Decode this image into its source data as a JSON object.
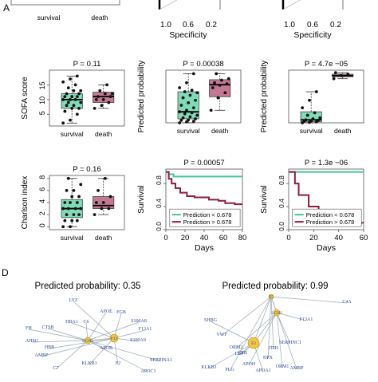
{
  "colors": {
    "survival_box": "#7fdcb8",
    "death_box": "#c47893",
    "line_low": "#3ec99a",
    "line_high": "#8b1e3f",
    "edge": "#9aa7b0",
    "node_text": "#2b4a9b",
    "hub_fill": "#f2c744"
  },
  "top_row": {
    "left_group_label": "survival",
    "right_group_label": "death",
    "clipped_axis_letter": "A",
    "roc": [
      {
        "axis_label": "Specificity",
        "tick_left": "1.0",
        "tick_mid": "0.6",
        "tick_right": "0.2"
      },
      {
        "axis_label": "Specificity",
        "tick_left": "1.0",
        "tick_mid": "0.6",
        "tick_right": "0.2"
      }
    ]
  },
  "panel_d": {
    "label": "D",
    "left_title": "Predicted probability: 0.35",
    "right_title": "Predicted probability: 0.99"
  },
  "chart_data": [
    {
      "type": "box",
      "p_label": "P = 0.11",
      "ylabel": "SOFA score",
      "categories": [
        "survival",
        "death"
      ],
      "yticks": [
        "5",
        "10",
        "15"
      ],
      "ylim": [
        1,
        20
      ],
      "boxes": [
        {
          "q1": 7,
          "median": 10,
          "q3": 12,
          "whisker_low": 2,
          "whisker_high": 18
        },
        {
          "q1": 9,
          "median": 11,
          "q3": 12.5,
          "whisker_low": 7,
          "whisker_high": 15
        }
      ],
      "points": [
        [
          2,
          3,
          5,
          6,
          7,
          7,
          8,
          8,
          9,
          9,
          10,
          10,
          10,
          11,
          11,
          11,
          12,
          12,
          13,
          13,
          14,
          15,
          16,
          17,
          18
        ],
        [
          7,
          8,
          9,
          10,
          10,
          11,
          11,
          12,
          12,
          13,
          15
        ]
      ]
    },
    {
      "type": "box",
      "p_label": "P = 0.00038",
      "ylabel": "Predicted probability",
      "categories": [
        "survival",
        "death"
      ],
      "ylim": [
        0,
        1.05
      ],
      "boxes": [
        {
          "q1": 0.08,
          "median": 0.22,
          "q3": 0.62,
          "whisker_low": 0.0,
          "whisker_high": 0.98
        },
        {
          "q1": 0.52,
          "median": 0.76,
          "q3": 0.86,
          "whisker_low": 0.25,
          "whisker_high": 0.98
        }
      ],
      "points": [
        [
          0.0,
          0.02,
          0.03,
          0.05,
          0.06,
          0.08,
          0.1,
          0.12,
          0.15,
          0.18,
          0.2,
          0.22,
          0.25,
          0.3,
          0.35,
          0.4,
          0.45,
          0.5,
          0.55,
          0.6,
          0.62,
          0.65,
          0.7,
          0.8,
          0.98
        ],
        [
          0.25,
          0.5,
          0.6,
          0.7,
          0.75,
          0.78,
          0.8,
          0.85,
          0.88,
          0.98
        ]
      ]
    },
    {
      "type": "box",
      "p_label": "P = 4.7e −05",
      "ylabel": "Predicted probability",
      "categories": [
        "survival",
        "death"
      ],
      "ylim": [
        0,
        1.05
      ],
      "boxes": [
        {
          "q1": 0.02,
          "median": 0.06,
          "q3": 0.22,
          "whisker_low": 0.0,
          "whisker_high": 0.62
        },
        {
          "q1": 0.92,
          "median": 0.94,
          "q3": 0.97,
          "whisker_low": 0.88,
          "whisker_high": 1.0
        }
      ],
      "points": [
        [
          0.0,
          0.01,
          0.02,
          0.03,
          0.04,
          0.05,
          0.06,
          0.08,
          0.1,
          0.15,
          0.2,
          0.3,
          0.45,
          0.62
        ],
        [
          0.88,
          0.94,
          0.97,
          1.0
        ]
      ]
    },
    {
      "type": "box",
      "p_label": "P = 0.16",
      "ylabel": "Charlson index",
      "categories": [
        "survival",
        "death"
      ],
      "yticks": [
        "0",
        "2",
        "4",
        "6",
        "8"
      ],
      "ylim": [
        -0.5,
        8.5
      ],
      "boxes": [
        {
          "q1": 1.5,
          "median": 3,
          "q3": 4.5,
          "whisker_low": 0,
          "whisker_high": 8
        },
        {
          "q1": 3,
          "median": 3.5,
          "q3": 5,
          "whisker_low": 2,
          "whisker_high": 8
        }
      ],
      "points": [
        [
          0,
          0,
          1,
          1,
          1,
          2,
          2,
          2,
          3,
          3,
          3,
          3,
          4,
          4,
          4,
          5,
          5,
          6,
          6,
          7,
          8
        ],
        [
          2,
          3,
          3,
          4,
          4,
          5,
          6,
          8
        ]
      ]
    },
    {
      "type": "line",
      "p_label": "P = 0.00057",
      "ylabel": "Survival",
      "xlabel": "Days",
      "xticks": [
        "0",
        "20",
        "40",
        "60",
        "80"
      ],
      "yticks": [
        "0.0",
        "0.4",
        "0.8"
      ],
      "xlim": [
        0,
        80
      ],
      "ylim": [
        0,
        1.05
      ],
      "series": [
        {
          "name": "Prediction < 0.678",
          "steps": [
            [
              0,
              1.0
            ],
            [
              3,
              0.96
            ],
            [
              8,
              0.92
            ],
            [
              80,
              0.92
            ]
          ]
        },
        {
          "name": "Prediction > 0.678",
          "steps": [
            [
              0,
              1.0
            ],
            [
              3,
              0.88
            ],
            [
              6,
              0.8
            ],
            [
              10,
              0.72
            ],
            [
              15,
              0.64
            ],
            [
              22,
              0.58
            ],
            [
              30,
              0.56
            ],
            [
              45,
              0.52
            ],
            [
              55,
              0.5
            ],
            [
              62,
              0.46
            ],
            [
              72,
              0.44
            ],
            [
              80,
              0.44
            ]
          ]
        }
      ]
    },
    {
      "type": "line",
      "p_label": "P = 1.3e −06",
      "ylabel": "Survival",
      "xlabel": "Days",
      "xticks": [
        "0",
        "20",
        "40",
        "60"
      ],
      "yticks": [
        "0.0",
        "0.4",
        "0.8"
      ],
      "xlim": [
        0,
        60
      ],
      "ylim": [
        0,
        1.05
      ],
      "series": [
        {
          "name": "Prediction < 0.678",
          "steps": [
            [
              0,
              1.0
            ],
            [
              60,
              1.0
            ]
          ]
        },
        {
          "name": "Prediction > 0.678",
          "steps": [
            [
              0,
              1.0
            ],
            [
              5,
              0.8
            ],
            [
              8,
              0.6
            ],
            [
              16,
              0.4
            ],
            [
              24,
              0.25
            ],
            [
              32,
              0.12
            ],
            [
              60,
              0.12
            ]
          ]
        }
      ]
    }
  ],
  "networks": {
    "left": {
      "hubs": [
        "LCN2",
        "F13"
      ],
      "nodes": [
        "FH",
        "LYZ",
        "APOE",
        "FGB",
        "S100A8",
        "F13A1",
        "CTSB",
        "HBA1",
        "AHSG",
        "HBB",
        "APOB",
        "S100A9",
        "C6",
        "AMBP",
        "SERPINA1",
        "KLKB1",
        "APOC1",
        "F2",
        "C7"
      ]
    },
    "right": {
      "hubs": [
        "F5",
        "LCN2",
        "F2"
      ],
      "nodes": [
        "C4A",
        "F13A1",
        "SHBG",
        "VWF",
        "ORM2",
        "LBP",
        "ITIH",
        "SERPINC1",
        "KLKB1",
        "PLG",
        "APOH",
        "CTB",
        "HPX",
        "ORM1",
        "APOA1",
        "AMBP"
      ]
    }
  }
}
